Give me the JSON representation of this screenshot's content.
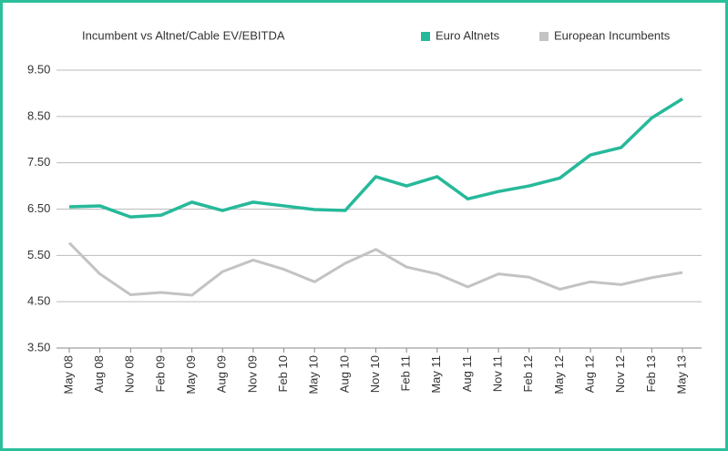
{
  "chart_data": {
    "type": "line",
    "title": "Incumbent vs Altnet/Cable EV/EBITDA",
    "categories": [
      "May 08",
      "Aug 08",
      "Nov 08",
      "Feb 09",
      "May 09",
      "Aug 09",
      "Nov 09",
      "Feb 10",
      "May 10",
      "Aug 10",
      "Nov 10",
      "Feb 11",
      "May 11",
      "Aug 11",
      "Nov 11",
      "Feb 12",
      "May 12",
      "Aug 12",
      "Nov 12",
      "Feb 13",
      "May 13"
    ],
    "series": [
      {
        "name": "Euro Altnets",
        "color": "#26b99a",
        "values": [
          6.55,
          6.57,
          6.33,
          6.37,
          6.65,
          6.47,
          6.65,
          6.57,
          6.49,
          6.47,
          7.2,
          7.0,
          7.2,
          6.72,
          6.88,
          7.0,
          7.17,
          7.67,
          7.83,
          8.47,
          8.88
        ]
      },
      {
        "name": "European Incumbents",
        "color": "#c3c3c3",
        "values": [
          5.77,
          5.1,
          4.65,
          4.7,
          4.64,
          5.15,
          5.4,
          5.2,
          4.93,
          5.33,
          5.63,
          5.25,
          5.1,
          4.82,
          5.1,
          5.03,
          4.77,
          4.93,
          4.87,
          5.02,
          5.13
        ]
      }
    ],
    "ylim": [
      3.5,
      9.5
    ],
    "yticks": [
      {
        "value": 3.5,
        "label": "3.50"
      },
      {
        "value": 4.5,
        "label": "4.50"
      },
      {
        "value": 5.5,
        "label": "5.50"
      },
      {
        "value": 6.5,
        "label": "6.50"
      },
      {
        "value": 7.5,
        "label": "7.50"
      },
      {
        "value": 8.5,
        "label": "8.50"
      },
      {
        "value": 9.5,
        "label": "9.50"
      }
    ],
    "grid": true,
    "legend": "top-right"
  }
}
